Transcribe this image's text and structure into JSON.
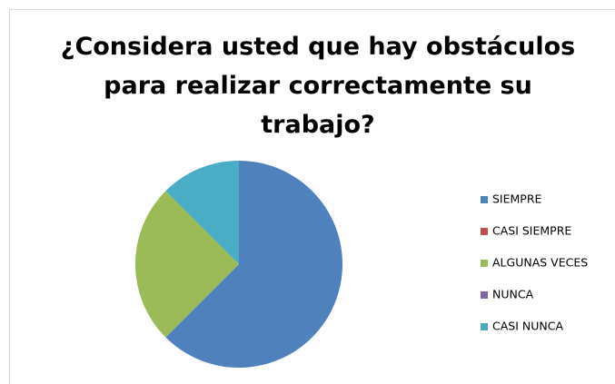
{
  "chart_data": {
    "type": "pie",
    "title": "¿Considera usted que hay obstáculos para realizar correctamente su trabajo?",
    "categories": [
      "SIEMPRE",
      "CASI SIEMPRE",
      "ALGUNAS VECES",
      "NUNCA",
      "CASI NUNCA"
    ],
    "values": [
      62.5,
      0,
      25,
      0,
      12.5
    ],
    "colors": [
      "#4f81bd",
      "#c0504d",
      "#9bbb59",
      "#8064a2",
      "#4bacc6"
    ],
    "legend": "right"
  }
}
